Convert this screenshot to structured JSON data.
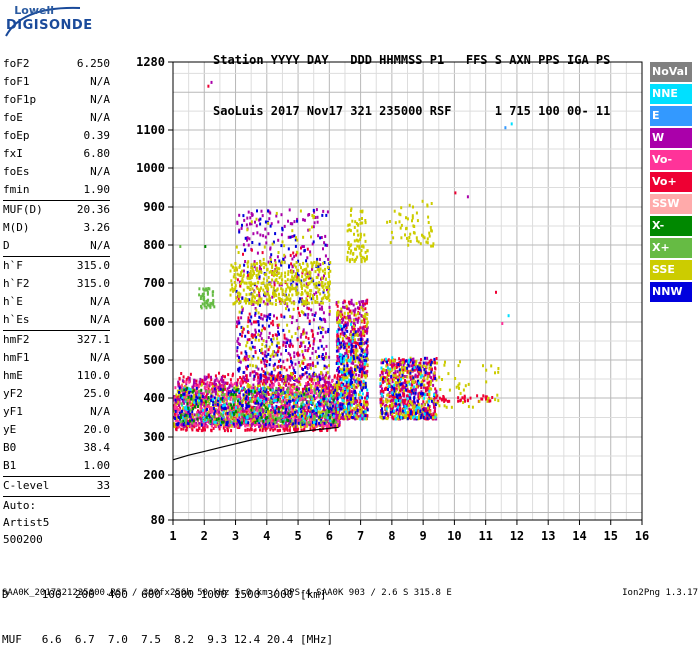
{
  "logo": {
    "line1": "Lowell",
    "line2": "DIGISONDE"
  },
  "header": {
    "line1": "Station YYYY DAY   DDD HHMMSS P1   FFS S AXN PPS IGA PS",
    "line2": "SaoLuis 2017 Nov17 321 235000 RSF      1 715 100 00- 11"
  },
  "params_group1": [
    {
      "label": "foF2",
      "value": "6.250"
    },
    {
      "label": "foF1",
      "value": "N/A"
    },
    {
      "label": "foF1p",
      "value": "N/A"
    },
    {
      "label": "foE",
      "value": "N/A"
    },
    {
      "label": "foEp",
      "value": "0.39"
    },
    {
      "label": "fxI",
      "value": "6.80"
    },
    {
      "label": "foEs",
      "value": "N/A"
    },
    {
      "label": "fmin",
      "value": "1.90"
    }
  ],
  "params_group2": [
    {
      "label": "MUF(D)",
      "value": "20.36"
    },
    {
      "label": "M(D)",
      "value": "3.26"
    },
    {
      "label": "D",
      "value": "N/A"
    }
  ],
  "params_group3": [
    {
      "label": "h`F",
      "value": "315.0"
    },
    {
      "label": "h`F2",
      "value": "315.0"
    },
    {
      "label": "h`E",
      "value": "N/A"
    },
    {
      "label": "h`Es",
      "value": "N/A"
    }
  ],
  "params_group4": [
    {
      "label": "hmF2",
      "value": "327.1"
    },
    {
      "label": "hmF1",
      "value": "N/A"
    },
    {
      "label": "hmE",
      "value": "110.0"
    },
    {
      "label": "yF2",
      "value": "25.0"
    },
    {
      "label": "yF1",
      "value": "N/A"
    },
    {
      "label": "yE",
      "value": "20.0"
    },
    {
      "label": "B0",
      "value": "38.4"
    },
    {
      "label": "B1",
      "value": "1.00"
    }
  ],
  "params_group5": [
    {
      "label": "C-level",
      "value": "33"
    }
  ],
  "auto": {
    "line1": "Auto:",
    "line2": "Artist5",
    "line3": "500200"
  },
  "legend": [
    {
      "label": "NoVal",
      "color": "#808080"
    },
    {
      "label": "NNE",
      "color": "#00e0ff"
    },
    {
      "label": "E",
      "color": "#3399ff"
    },
    {
      "label": "W",
      "color": "#aa00aa"
    },
    {
      "label": "Vo-",
      "color": "#ff3399"
    },
    {
      "label": "Vo+",
      "color": "#ee0033"
    },
    {
      "label": "SSW",
      "color": "#ffaaaa"
    },
    {
      "label": "X-",
      "color": "#008800"
    },
    {
      "label": "X+",
      "color": "#66bb44"
    },
    {
      "label": "SSE",
      "color": "#cccc00"
    },
    {
      "label": "NNW",
      "color": "#0000dd"
    }
  ],
  "bottom": {
    "d_line": "D     100  200  400  600  800 1000 1500 3000 [km]",
    "muf_line": "MUF   6.6  6.7  7.0  7.5  8.2  9.3 12.4 20.4 [MHz]",
    "file_line": "SAA0K_2017321235000.RSF / 300fx256h 50 kHz 5.0 km / DPS-4 SAA0K 903 / 2.6 S 315.8 E",
    "version": "Ion2Png 1.3.17"
  },
  "chart_data": {
    "type": "scatter",
    "xlim": [
      1,
      16
    ],
    "ylim": [
      80,
      1280
    ],
    "x_ticks": [
      "1",
      "2",
      "3",
      "4",
      "5",
      "6",
      "7",
      "8",
      "9",
      "10",
      "11",
      "12",
      "13",
      "14",
      "15",
      "16"
    ],
    "y_ticks": [
      "80",
      "200",
      "300",
      "400",
      "500",
      "600",
      "700",
      "800",
      "900",
      "1000",
      "1100",
      "1280"
    ],
    "grid": true,
    "legend_position": "right",
    "trace": {
      "x": [
        1.0,
        1.5,
        2.0,
        2.5,
        3.0,
        3.5,
        4.0,
        4.5,
        5.0,
        5.5,
        6.0,
        6.3
      ],
      "y": [
        240,
        252,
        262,
        272,
        282,
        292,
        300,
        307,
        313,
        318,
        322,
        325
      ]
    },
    "clusters": [
      {
        "x": [
          1.0,
          6.3
        ],
        "y": [
          320,
          470
        ],
        "color": "#ee0033",
        "n": 700
      },
      {
        "x": [
          1.0,
          6.3
        ],
        "y": [
          330,
          440
        ],
        "color": "#cccc00",
        "n": 650
      },
      {
        "x": [
          1.0,
          6.3
        ],
        "y": [
          330,
          460
        ],
        "color": "#aa00aa",
        "n": 500
      },
      {
        "x": [
          1.0,
          6.3
        ],
        "y": [
          330,
          450
        ],
        "color": "#ff3399",
        "n": 350
      },
      {
        "x": [
          1.0,
          6.3
        ],
        "y": [
          335,
          430
        ],
        "color": "#0000dd",
        "n": 250
      },
      {
        "x": [
          1.2,
          6.2
        ],
        "y": [
          340,
          430
        ],
        "color": "#00e0ff",
        "n": 120
      },
      {
        "x": [
          1.2,
          6.2
        ],
        "y": [
          340,
          430
        ],
        "color": "#66bb44",
        "n": 150
      },
      {
        "x": [
          1.2,
          6.2
        ],
        "y": [
          340,
          430
        ],
        "color": "#008800",
        "n": 80
      },
      {
        "x": [
          3.0,
          6.0
        ],
        "y": [
          450,
          900
        ],
        "color": "#aa00aa",
        "n": 350
      },
      {
        "x": [
          3.0,
          6.0
        ],
        "y": [
          450,
          900
        ],
        "color": "#0000dd",
        "n": 200
      },
      {
        "x": [
          3.0,
          6.0
        ],
        "y": [
          450,
          900
        ],
        "color": "#cccc00",
        "n": 150
      },
      {
        "x": [
          3.0,
          5.5
        ],
        "y": [
          450,
          800
        ],
        "color": "#ee0033",
        "n": 120
      },
      {
        "x": [
          2.8,
          6.0
        ],
        "y": [
          650,
          760
        ],
        "color": "#cccc00",
        "n": 400
      },
      {
        "x": [
          1.8,
          2.3
        ],
        "y": [
          640,
          690
        ],
        "color": "#66bb44",
        "n": 50
      },
      {
        "x": [
          6.2,
          7.2
        ],
        "y": [
          350,
          660
        ],
        "color": "#ee0033",
        "n": 300
      },
      {
        "x": [
          6.2,
          7.2
        ],
        "y": [
          350,
          660
        ],
        "color": "#aa00aa",
        "n": 250
      },
      {
        "x": [
          6.2,
          7.2
        ],
        "y": [
          350,
          660
        ],
        "color": "#cccc00",
        "n": 200
      },
      {
        "x": [
          6.2,
          7.2
        ],
        "y": [
          350,
          600
        ],
        "color": "#0000dd",
        "n": 120
      },
      {
        "x": [
          6.2,
          7.2
        ],
        "y": [
          350,
          600
        ],
        "color": "#00e0ff",
        "n": 60
      },
      {
        "x": [
          6.5,
          7.2
        ],
        "y": [
          760,
          900
        ],
        "color": "#cccc00",
        "n": 80
      },
      {
        "x": [
          7.6,
          9.4
        ],
        "y": [
          350,
          510
        ],
        "color": "#aa00aa",
        "n": 300
      },
      {
        "x": [
          7.6,
          9.4
        ],
        "y": [
          350,
          510
        ],
        "color": "#ee0033",
        "n": 250
      },
      {
        "x": [
          7.6,
          9.4
        ],
        "y": [
          350,
          510
        ],
        "color": "#cccc00",
        "n": 200
      },
      {
        "x": [
          7.6,
          9.4
        ],
        "y": [
          350,
          510
        ],
        "color": "#0000dd",
        "n": 100
      },
      {
        "x": [
          7.6,
          9.4
        ],
        "y": [
          350,
          510
        ],
        "color": "#00e0ff",
        "n": 50
      },
      {
        "x": [
          7.8,
          9.3
        ],
        "y": [
          800,
          920
        ],
        "color": "#cccc00",
        "n": 60
      },
      {
        "x": [
          9.4,
          11.2
        ],
        "y": [
          395,
          410
        ],
        "color": "#ee0033",
        "n": 40
      },
      {
        "x": [
          9.4,
          11.4
        ],
        "y": [
          380,
          500
        ],
        "color": "#cccc00",
        "n": 40
      }
    ],
    "sparse_points": [
      {
        "x": 2.1,
        "y": 1220,
        "color": "#ee0033"
      },
      {
        "x": 2.2,
        "y": 1230,
        "color": "#aa00aa"
      },
      {
        "x": 11.6,
        "y": 1110,
        "color": "#3399ff"
      },
      {
        "x": 11.8,
        "y": 1120,
        "color": "#00e0ff"
      },
      {
        "x": 10.0,
        "y": 940,
        "color": "#ee0033"
      },
      {
        "x": 10.4,
        "y": 930,
        "color": "#aa00aa"
      },
      {
        "x": 11.3,
        "y": 680,
        "color": "#ee0033"
      },
      {
        "x": 11.5,
        "y": 600,
        "color": "#ff3399"
      },
      {
        "x": 11.7,
        "y": 620,
        "color": "#00e0ff"
      },
      {
        "x": 1.2,
        "y": 800,
        "color": "#66bb44"
      },
      {
        "x": 2.0,
        "y": 800,
        "color": "#008800"
      }
    ]
  }
}
